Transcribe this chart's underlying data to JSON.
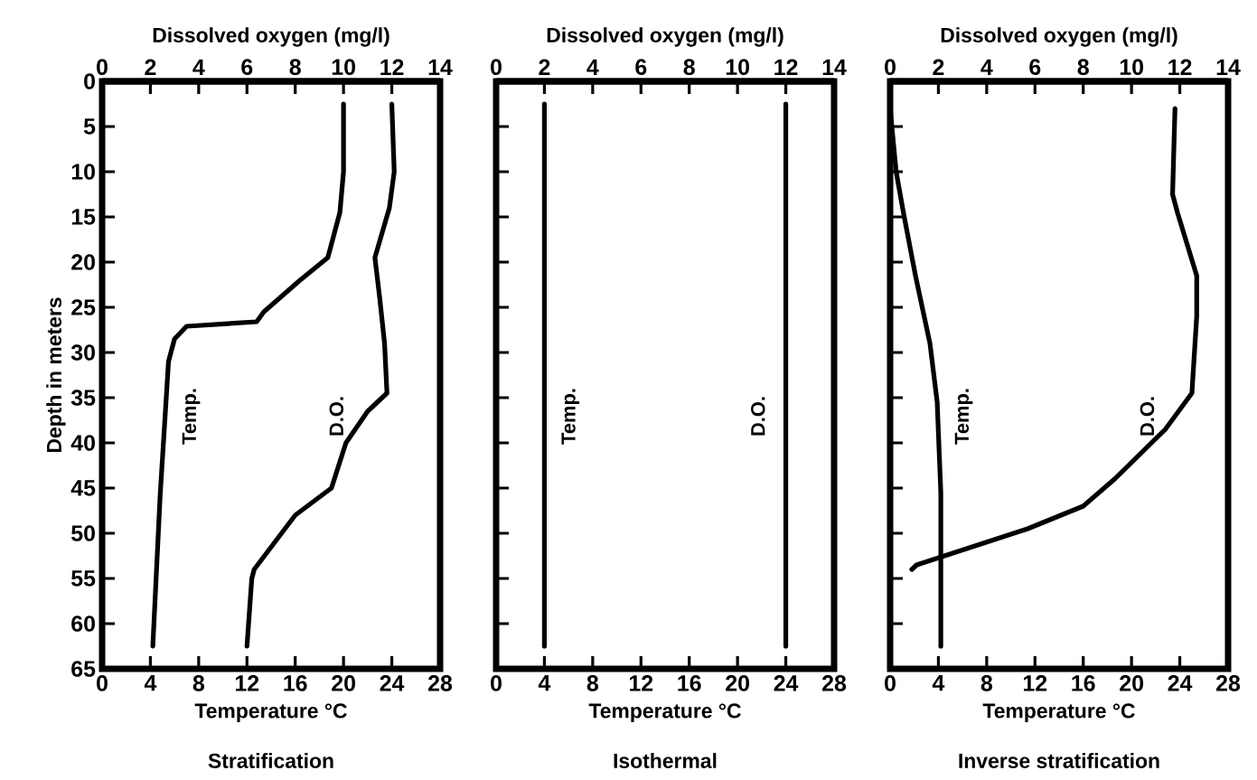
{
  "chart_data": [
    {
      "type": "line",
      "title": "Stratification",
      "xlabel": "Temperature °C",
      "x2label": "Dissolved oxygen (mg/l)",
      "ylabel": "Depth in meters",
      "orientation": "horizontal",
      "xlim": [
        0,
        28
      ],
      "xticks": [
        0,
        4,
        8,
        12,
        16,
        20,
        24,
        28
      ],
      "x2lim": [
        0,
        14
      ],
      "x2ticks": [
        0,
        2,
        4,
        6,
        8,
        10,
        12,
        14
      ],
      "ylim": [
        65,
        0
      ],
      "yticks": [
        0,
        5,
        10,
        15,
        20,
        25,
        30,
        35,
        40,
        45,
        50,
        55,
        60,
        65
      ],
      "series": [
        {
          "name": "Temp.",
          "color": "#000000",
          "x": [
            2.5,
            10,
            14.5,
            19.5,
            22,
            25.5,
            26.6,
            27.1,
            28.5,
            31,
            46,
            62.5
          ],
          "values": [
            20,
            20,
            19.7,
            18.7,
            16.4,
            13.4,
            12.8,
            7,
            6,
            5.5,
            4.8,
            4.2
          ]
        },
        {
          "name": "D.O.",
          "color": "#000000",
          "axis": "x2",
          "x": [
            2.5,
            10,
            14,
            19.5,
            24,
            29,
            34.5,
            36.5,
            40,
            45,
            48,
            54,
            55,
            62.5
          ],
          "values": [
            12,
            12.1,
            11.9,
            11.3,
            11.5,
            11.7,
            11.8,
            11,
            10.1,
            9.5,
            8,
            6.3,
            6.2,
            6
          ]
        }
      ]
    },
    {
      "type": "line",
      "title": "Isothermal",
      "xlabel": "Temperature °C",
      "x2label": "Dissolved oxygen (mg/l)",
      "orientation": "horizontal",
      "tick_labels": "x",
      "xlim": [
        0,
        28
      ],
      "xticks": [
        0,
        4,
        8,
        12,
        16,
        20,
        24,
        28
      ],
      "x2lim": [
        0,
        14
      ],
      "x2ticks": [
        0,
        2,
        4,
        6,
        8,
        10,
        12,
        14
      ],
      "ylim": [
        65,
        0
      ],
      "yticks": [
        0,
        5,
        10,
        15,
        20,
        25,
        30,
        35,
        40,
        45,
        50,
        55,
        60,
        65
      ],
      "series": [
        {
          "name": "Temp.",
          "color": "#000000",
          "x": [
            2.5,
            62.5
          ],
          "values": [
            4,
            4
          ]
        },
        {
          "name": "D.O.",
          "color": "#000000",
          "axis": "x2",
          "x": [
            2.5,
            62.5
          ],
          "values": [
            12,
            12
          ]
        }
      ]
    },
    {
      "type": "line",
      "title": "Inverse stratification",
      "xlabel": "Temperature °C",
      "x2label": "Dissolved oxygen (mg/l)",
      "orientation": "horizontal",
      "tick_labels": "x",
      "xlim": [
        0,
        28
      ],
      "xticks": [
        0,
        4,
        8,
        12,
        16,
        20,
        24,
        28
      ],
      "x2lim": [
        0,
        14
      ],
      "x2ticks": [
        0,
        2,
        4,
        6,
        8,
        10,
        12,
        14
      ],
      "ylim": [
        65,
        0
      ],
      "yticks": [
        0,
        5,
        10,
        15,
        20,
        25,
        30,
        35,
        40,
        45,
        50,
        55,
        60,
        65
      ],
      "series": [
        {
          "name": "Temp.",
          "color": "#000000",
          "x": [
            3,
            10,
            14.5,
            21.5,
            29,
            35.5,
            45.5,
            62.5
          ],
          "values": [
            0,
            0.5,
            1.1,
            2.1,
            3.3,
            3.9,
            4.2,
            4.2
          ]
        },
        {
          "name": "D.O.",
          "color": "#000000",
          "axis": "x2",
          "x": [
            3,
            12.5,
            14.5,
            21.5,
            26,
            34.5,
            38.5,
            44,
            47,
            49.5,
            53.5,
            54
          ],
          "values": [
            11.8,
            11.7,
            11.9,
            12.7,
            12.7,
            12.5,
            11.4,
            9.3,
            8,
            5.7,
            1.1,
            0.9
          ]
        }
      ]
    }
  ]
}
